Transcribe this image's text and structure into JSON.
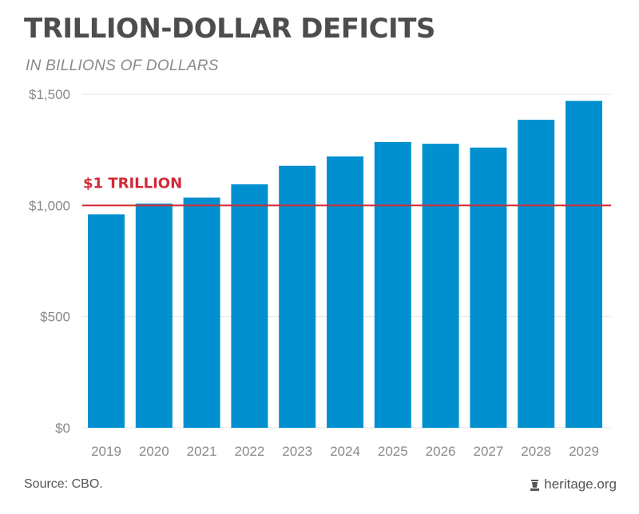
{
  "title": "TRILLION-DOLLAR DEFICITS",
  "subtitle": "IN BILLIONS OF DOLLARS",
  "source": "Source: CBO.",
  "brand": {
    "text": "heritage.org",
    "icon": "bell-icon"
  },
  "colors": {
    "bar": "#0090cf",
    "reference": "#d22a35",
    "grid": "#e6e6e6",
    "title": "#4d4d4d"
  },
  "chart_data": {
    "type": "bar",
    "title": "TRILLION-DOLLAR DEFICITS",
    "subtitle": "IN BILLIONS OF DOLLARS",
    "xlabel": "",
    "ylabel": "",
    "categories": [
      "2019",
      "2020",
      "2021",
      "2022",
      "2023",
      "2024",
      "2025",
      "2026",
      "2027",
      "2028",
      "2029"
    ],
    "values": [
      960,
      1008,
      1035,
      1095,
      1178,
      1220,
      1285,
      1277,
      1260,
      1385,
      1470
    ],
    "ylim": [
      0,
      1500
    ],
    "yticks": [
      0,
      500,
      1000,
      1500
    ],
    "ytick_labels": [
      "$0",
      "$500",
      "$1,000",
      "$1,500"
    ],
    "grid": true,
    "reference_line": {
      "value": 1000,
      "label": "$1 TRILLION"
    }
  }
}
